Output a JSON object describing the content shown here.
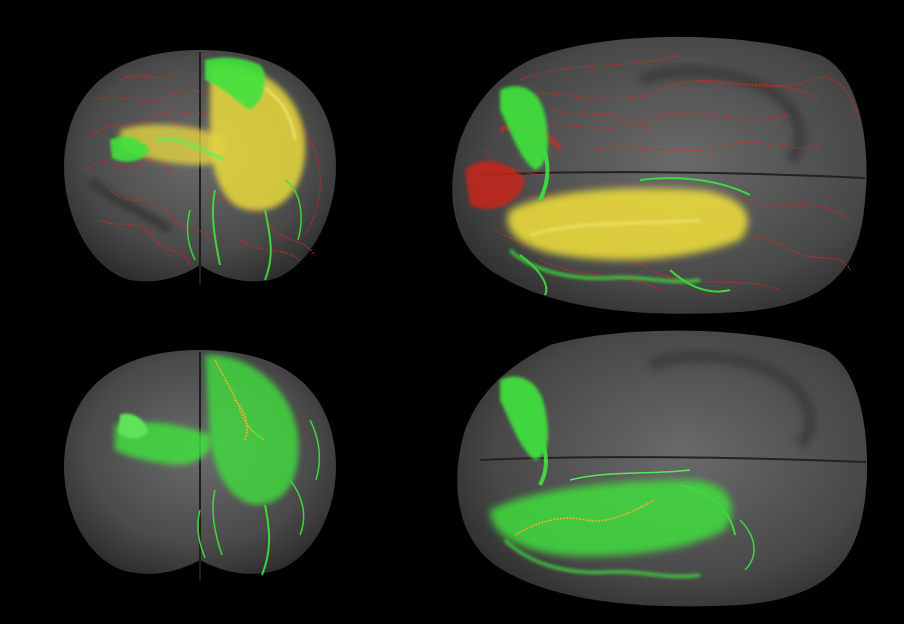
{
  "figure": {
    "background_color": "#000000",
    "panels": [
      {
        "id": "coronal-combined",
        "view": "coronal",
        "layers": [
          "red-traces",
          "yellow-traces",
          "green-traces"
        ]
      },
      {
        "id": "horizontal-combined",
        "view": "horizontal",
        "layers": [
          "red-traces",
          "yellow-traces",
          "green-traces"
        ]
      },
      {
        "id": "coronal-single",
        "view": "coronal",
        "layers": [
          "green-traces",
          "orange-trace"
        ]
      },
      {
        "id": "horizontal-single",
        "view": "horizontal",
        "layers": [
          "green-traces",
          "orange-trace"
        ]
      }
    ],
    "colors": {
      "brain": "#5a5a5a",
      "red_traces": "#d22a1e",
      "yellow_traces": "#f2e23a",
      "green_traces": "#3fe23c",
      "orange_trace": "#f0b030"
    }
  }
}
